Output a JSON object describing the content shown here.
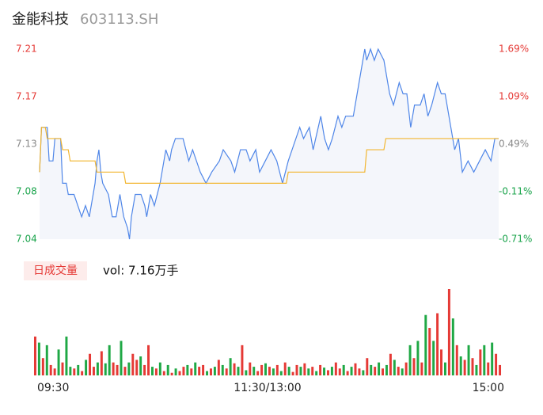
{
  "header": {
    "name": "金能科技",
    "code": "603113.SH"
  },
  "chart_data": [
    {
      "type": "line",
      "xlim": [
        0,
        240
      ],
      "ylim": [
        7.04,
        7.21
      ],
      "yticks": [
        7.04,
        {
          "value": 7.0825,
          "label": "7.08"
        },
        {
          "value": 7.125,
          "label": "7.13"
        },
        {
          "value": 7.1675,
          "label": "7.17"
        },
        7.21
      ],
      "ytick_colors": [
        "#18a34a",
        "#18a34a",
        "#888888",
        "#e53935",
        "#e53935"
      ],
      "y2lim": [
        -0.71,
        1.69
      ],
      "y2ticks": [
        {
          "value": -0.71,
          "label": "-0.71%"
        },
        {
          "value": -0.11,
          "label": "-0.11%"
        },
        {
          "value": 0.49,
          "label": "0.49%"
        },
        {
          "value": 1.09,
          "label": "1.09%"
        },
        {
          "value": 1.69,
          "label": "1.69%"
        }
      ],
      "series": [
        {
          "color": "#4f86e8",
          "fill": "#f4f6fb",
          "x": [
            0,
            1,
            4,
            5,
            7,
            8,
            11,
            12,
            14,
            15,
            18,
            20,
            22,
            24,
            26,
            28,
            29,
            30,
            31,
            32,
            33,
            36,
            38,
            40,
            41,
            42,
            44,
            46,
            47,
            48,
            50,
            53,
            55,
            56,
            58,
            60,
            63,
            64,
            66,
            68,
            69,
            71,
            75,
            78,
            80,
            84,
            87,
            90,
            94,
            96,
            100,
            102,
            105,
            108,
            110,
            113,
            115,
            118,
            121,
            124,
            127,
            130,
            132,
            136,
            138,
            141,
            143,
            147,
            149,
            151,
            153,
            156,
            158,
            160,
            164,
            167,
            169,
            170,
            171,
            173,
            175,
            177,
            180,
            183,
            185,
            188,
            190,
            192,
            194,
            196,
            199,
            201,
            203,
            205,
            208,
            210,
            212,
            215,
            217,
            219,
            221,
            224,
            227,
            230,
            233,
            236,
            238,
            240
          ],
          "values": [
            7.1,
            7.14,
            7.14,
            7.11,
            7.11,
            7.13,
            7.13,
            7.09,
            7.09,
            7.08,
            7.08,
            7.07,
            7.06,
            7.07,
            7.06,
            7.08,
            7.09,
            7.11,
            7.12,
            7.1,
            7.09,
            7.08,
            7.06,
            7.06,
            7.07,
            7.08,
            7.06,
            7.05,
            7.04,
            7.06,
            7.08,
            7.08,
            7.07,
            7.06,
            7.08,
            7.07,
            7.09,
            7.1,
            7.12,
            7.11,
            7.12,
            7.13,
            7.13,
            7.11,
            7.12,
            7.1,
            7.09,
            7.1,
            7.11,
            7.12,
            7.11,
            7.1,
            7.12,
            7.12,
            7.11,
            7.12,
            7.1,
            7.11,
            7.12,
            7.11,
            7.09,
            7.11,
            7.12,
            7.14,
            7.13,
            7.14,
            7.12,
            7.15,
            7.13,
            7.12,
            7.13,
            7.15,
            7.14,
            7.15,
            7.15,
            7.18,
            7.2,
            7.21,
            7.2,
            7.21,
            7.2,
            7.21,
            7.2,
            7.17,
            7.16,
            7.18,
            7.17,
            7.17,
            7.14,
            7.16,
            7.16,
            7.17,
            7.15,
            7.16,
            7.18,
            7.17,
            7.17,
            7.14,
            7.12,
            7.13,
            7.1,
            7.11,
            7.1,
            7.11,
            7.12,
            7.11,
            7.13,
            7.13
          ]
        },
        {
          "color": "#f2b630",
          "x": [
            0,
            1,
            3,
            4,
            11,
            12,
            15,
            16,
            29,
            30,
            44,
            45,
            129,
            130,
            170,
            171,
            180,
            181,
            240
          ],
          "values": [
            7.1,
            7.14,
            7.14,
            7.13,
            7.13,
            7.12,
            7.12,
            7.11,
            7.11,
            7.1,
            7.1,
            7.09,
            7.09,
            7.1,
            7.1,
            7.12,
            7.12,
            7.13,
            7.13
          ]
        }
      ]
    },
    {
      "type": "bar",
      "title": "日成交量",
      "subtitle": "vol: 7.16万手",
      "ylim": [
        0,
        100
      ],
      "xlim": [
        0,
        120
      ],
      "xticks": [
        {
          "value": 0,
          "label": "09:30"
        },
        {
          "value": 60,
          "label": "11:30/13:00"
        },
        {
          "value": 120,
          "label": "15:00"
        }
      ],
      "values": [
        45,
        38,
        20,
        35,
        12,
        8,
        30,
        15,
        45,
        10,
        8,
        12,
        5,
        18,
        25,
        10,
        15,
        28,
        14,
        35,
        15,
        12,
        40,
        10,
        15,
        25,
        18,
        22,
        12,
        35,
        10,
        8,
        15,
        5,
        12,
        3,
        8,
        5,
        10,
        12,
        8,
        15,
        10,
        12,
        5,
        8,
        10,
        18,
        12,
        8,
        20,
        14,
        10,
        35,
        6,
        15,
        10,
        5,
        12,
        14,
        10,
        8,
        12,
        5,
        15,
        10,
        4,
        12,
        10,
        14,
        8,
        10,
        5,
        12,
        9,
        6,
        10,
        15,
        8,
        12,
        5,
        10,
        14,
        8,
        6,
        20,
        12,
        10,
        15,
        8,
        12,
        25,
        18,
        10,
        8,
        15,
        35,
        20,
        40,
        15,
        70,
        55,
        40,
        72,
        30,
        15,
        100,
        66,
        35,
        22,
        18,
        35,
        20,
        12,
        30,
        35,
        15,
        38,
        25,
        12
      ],
      "colors": [
        "#e53935",
        "#1fa845",
        "#e53935",
        "#1fa845",
        "#e53935",
        "#e53935",
        "#1fa845",
        "#e53935",
        "#1fa845",
        "#1fa845",
        "#e53935",
        "#1fa845",
        "#e53935",
        "#1fa845",
        "#e53935",
        "#e53935",
        "#1fa845",
        "#e53935",
        "#1fa845",
        "#1fa845",
        "#e53935",
        "#e53935",
        "#1fa845",
        "#e53935",
        "#1fa845",
        "#e53935",
        "#e53935",
        "#1fa845",
        "#e53935",
        "#e53935",
        "#1fa845",
        "#e53935",
        "#1fa845",
        "#e53935",
        "#1fa845",
        "#e53935",
        "#1fa845",
        "#e53935",
        "#e53935",
        "#1fa845",
        "#e53935",
        "#1fa845",
        "#e53935",
        "#e53935",
        "#1fa845",
        "#e53935",
        "#1fa845",
        "#e53935",
        "#1fa845",
        "#e53935",
        "#1fa845",
        "#e53935",
        "#1fa845",
        "#e53935",
        "#1fa845",
        "#e53935",
        "#1fa845",
        "#e53935",
        "#e53935",
        "#1fa845",
        "#e53935",
        "#1fa845",
        "#e53935",
        "#1fa845",
        "#e53935",
        "#1fa845",
        "#e53935",
        "#e53935",
        "#1fa845",
        "#e53935",
        "#1fa845",
        "#e53935",
        "#1fa845",
        "#e53935",
        "#1fa845",
        "#e53935",
        "#1fa845",
        "#e53935",
        "#e53935",
        "#1fa845",
        "#e53935",
        "#1fa845",
        "#e53935",
        "#e53935",
        "#1fa845",
        "#e53935",
        "#1fa845",
        "#e53935",
        "#1fa845",
        "#e53935",
        "#1fa845",
        "#e53935",
        "#1fa845",
        "#e53935",
        "#1fa845",
        "#e53935",
        "#1fa845",
        "#e53935",
        "#1fa845",
        "#e53935",
        "#1fa845",
        "#e53935",
        "#1fa845",
        "#e53935",
        "#e53935",
        "#1fa845",
        "#e53935",
        "#1fa845",
        "#e53935",
        "#1fa845",
        "#e53935",
        "#1fa845",
        "#e53935",
        "#1fa845",
        "#e53935",
        "#1fa845",
        "#e53935",
        "#1fa845",
        "#e53935",
        "#e53935"
      ]
    }
  ]
}
